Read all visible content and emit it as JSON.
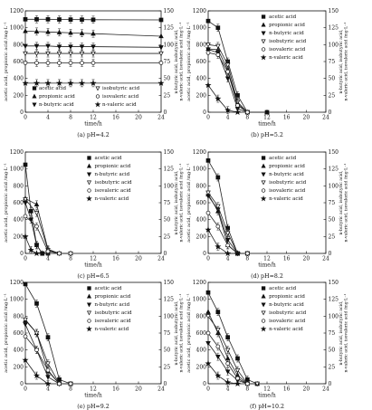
{
  "common": {
    "ylabel_left": "acetic acid, propionic acid /mg·L⁻¹",
    "ylabel_right": "n-butyric acid, isobutyric acid, n-valeric acid, isovaleric acid /mg·L⁻¹",
    "xlabel": "time/h"
  },
  "chart_data": [
    {
      "panel": "a",
      "caption": "(a)  pH=4.2",
      "type": "line",
      "xlim": [
        0,
        24
      ],
      "xticks": [
        0,
        4,
        8,
        12,
        16,
        20,
        24
      ],
      "ylim": [
        0,
        1200
      ],
      "yticks": [
        0,
        200,
        400,
        600,
        800,
        1000,
        1200
      ],
      "y2lim": [
        0,
        150
      ],
      "y2ticks": [
        0,
        25,
        50,
        75,
        100,
        125,
        150
      ],
      "legend": "bottom-center",
      "series": [
        {
          "name": "acetic acid",
          "marker": "square",
          "axis": "left",
          "x": [
            0,
            2,
            4,
            6,
            8,
            10,
            12,
            24
          ],
          "y": [
            1100,
            1100,
            1100,
            1098,
            1097,
            1096,
            1095,
            1093
          ]
        },
        {
          "name": "propionic acid",
          "marker": "triangle",
          "axis": "left",
          "x": [
            0,
            2,
            4,
            6,
            8,
            10,
            12,
            24
          ],
          "y": [
            960,
            955,
            950,
            945,
            940,
            935,
            930,
            900
          ]
        },
        {
          "name": "n-butyric acid",
          "marker": "triangle-down",
          "axis": "right",
          "x": [
            0,
            2,
            4,
            6,
            8,
            10,
            12,
            24
          ],
          "y": [
            98,
            98,
            98,
            97,
            97,
            97,
            97,
            96
          ]
        },
        {
          "name": "isobutyric acid",
          "marker": "triangle-down-open",
          "axis": "right",
          "x": [
            0,
            2,
            4,
            6,
            8,
            10,
            12,
            24
          ],
          "y": [
            87,
            87,
            87,
            87,
            87,
            87,
            87,
            87
          ]
        },
        {
          "name": "isovaleric acid",
          "marker": "circle-open",
          "axis": "right",
          "x": [
            0,
            2,
            4,
            6,
            8,
            10,
            12,
            24
          ],
          "y": [
            73,
            73,
            73,
            73,
            73,
            73,
            73,
            73
          ]
        },
        {
          "name": "n-valeric acid",
          "marker": "star",
          "axis": "right",
          "x": [
            0,
            2,
            4,
            6,
            8,
            10,
            12,
            24
          ],
          "y": [
            43,
            43,
            43,
            43,
            43,
            43,
            43,
            43
          ]
        }
      ]
    },
    {
      "panel": "b",
      "caption": "(b)  pH=5.2",
      "type": "line",
      "xlim": [
        0,
        24
      ],
      "xticks": [
        0,
        4,
        8,
        12,
        16,
        20,
        24
      ],
      "ylim": [
        0,
        1200
      ],
      "yticks": [
        0,
        200,
        400,
        600,
        800,
        1000,
        1200
      ],
      "y2lim": [
        0,
        150
      ],
      "y2ticks": [
        0,
        25,
        50,
        75,
        100,
        125,
        150
      ],
      "legend": "top-right",
      "series": [
        {
          "name": "acetic acid",
          "marker": "square",
          "axis": "left",
          "x": [
            0,
            2,
            4,
            6,
            8,
            12
          ],
          "y": [
            1080,
            1000,
            600,
            200,
            0,
            0
          ]
        },
        {
          "name": "propionic acid",
          "marker": "triangle",
          "axis": "left",
          "x": [
            0,
            2,
            4,
            6,
            8,
            12
          ],
          "y": [
            750,
            740,
            500,
            100,
            0,
            0
          ]
        },
        {
          "name": "n-butyric acid",
          "marker": "triangle-down",
          "axis": "right",
          "x": [
            0,
            2,
            4,
            6,
            8
          ],
          "y": [
            93,
            88,
            50,
            5,
            0
          ]
        },
        {
          "name": "isobutyric acid",
          "marker": "triangle-down-open",
          "axis": "right",
          "x": [
            0,
            2,
            4,
            6,
            8
          ],
          "y": [
            100,
            98,
            70,
            15,
            0
          ]
        },
        {
          "name": "isovaleric acid",
          "marker": "circle-open",
          "axis": "right",
          "x": [
            0,
            2,
            4,
            6,
            8
          ],
          "y": [
            88,
            85,
            60,
            10,
            0
          ]
        },
        {
          "name": "n-valeric acid",
          "marker": "star",
          "axis": "right",
          "x": [
            0,
            2,
            4,
            6
          ],
          "y": [
            40,
            20,
            3,
            0
          ]
        }
      ]
    },
    {
      "panel": "c",
      "caption": "(c)  pH=6.5",
      "type": "line",
      "xlim": [
        0,
        24
      ],
      "xticks": [
        0,
        4,
        8,
        12,
        16,
        20,
        24
      ],
      "ylim": [
        0,
        1200
      ],
      "yticks": [
        0,
        200,
        400,
        600,
        800,
        1000,
        1200
      ],
      "y2lim": [
        0,
        150
      ],
      "y2ticks": [
        0,
        25,
        50,
        75,
        100,
        125,
        150
      ],
      "legend": "top-right",
      "series": [
        {
          "name": "acetic acid",
          "marker": "square",
          "axis": "left",
          "x": [
            0,
            1,
            2,
            3,
            4
          ],
          "y": [
            1050,
            500,
            100,
            0,
            0
          ]
        },
        {
          "name": "propionic acid",
          "marker": "triangle",
          "axis": "left",
          "x": [
            0,
            2,
            4,
            6,
            8
          ],
          "y": [
            650,
            580,
            50,
            0,
            0
          ]
        },
        {
          "name": "n-butyric acid",
          "marker": "triangle-down",
          "axis": "right",
          "x": [
            0,
            1,
            2,
            3,
            4
          ],
          "y": [
            75,
            50,
            12,
            0,
            0
          ]
        },
        {
          "name": "isobutyric acid",
          "marker": "triangle-down-open",
          "axis": "right",
          "x": [
            0,
            2,
            4,
            6,
            8
          ],
          "y": [
            80,
            60,
            5,
            0,
            0
          ]
        },
        {
          "name": "isovaleric acid",
          "marker": "circle-open",
          "axis": "right",
          "x": [
            0,
            2,
            4,
            6,
            8
          ],
          "y": [
            55,
            40,
            3,
            0,
            0
          ]
        },
        {
          "name": "n-valeric acid",
          "marker": "star",
          "axis": "right",
          "x": [
            0,
            1,
            2,
            3
          ],
          "y": [
            25,
            5,
            0,
            0
          ]
        }
      ]
    },
    {
      "panel": "d",
      "caption": "(d)  pH=8.2",
      "type": "line",
      "xlim": [
        0,
        24
      ],
      "xticks": [
        0,
        4,
        8,
        12,
        16,
        20,
        24
      ],
      "ylim": [
        0,
        1200
      ],
      "yticks": [
        0,
        200,
        400,
        600,
        800,
        1000,
        1200
      ],
      "y2lim": [
        0,
        150
      ],
      "y2ticks": [
        0,
        25,
        50,
        75,
        100,
        125,
        150
      ],
      "legend": "top-right",
      "series": [
        {
          "name": "acetic acid",
          "marker": "square",
          "axis": "left",
          "x": [
            0,
            2,
            4,
            6,
            8
          ],
          "y": [
            1100,
            900,
            300,
            0,
            0
          ]
        },
        {
          "name": "propionic acid",
          "marker": "triangle",
          "axis": "left",
          "x": [
            0,
            2,
            4,
            6,
            8
          ],
          "y": [
            700,
            500,
            100,
            0,
            0
          ]
        },
        {
          "name": "n-butyric acid",
          "marker": "triangle-down",
          "axis": "right",
          "x": [
            0,
            2,
            4,
            6,
            8
          ],
          "y": [
            85,
            65,
            20,
            0,
            0
          ]
        },
        {
          "name": "isobutyric acid",
          "marker": "triangle-down-open",
          "axis": "right",
          "x": [
            0,
            2,
            4,
            6,
            8
          ],
          "y": [
            90,
            70,
            30,
            0,
            0
          ]
        },
        {
          "name": "isovaleric acid",
          "marker": "circle-open",
          "axis": "right",
          "x": [
            0,
            2,
            4,
            6,
            8
          ],
          "y": [
            60,
            40,
            12,
            0,
            0
          ]
        },
        {
          "name": "n-valeric acid",
          "marker": "star",
          "axis": "right",
          "x": [
            0,
            2,
            4,
            6
          ],
          "y": [
            35,
            10,
            0,
            0
          ]
        }
      ]
    },
    {
      "panel": "e",
      "caption": "(e)  pH=9.2",
      "type": "line",
      "xlim": [
        0,
        24
      ],
      "xticks": [
        0,
        4,
        8,
        12,
        16,
        20,
        24
      ],
      "ylim": [
        0,
        1200
      ],
      "yticks": [
        0,
        200,
        400,
        600,
        800,
        1000,
        1200
      ],
      "y2lim": [
        0,
        150
      ],
      "y2ticks": [
        0,
        25,
        50,
        75,
        100,
        125,
        150
      ],
      "legend": "top-right",
      "series": [
        {
          "name": "acetic acid",
          "marker": "square",
          "axis": "left",
          "x": [
            0,
            2,
            4,
            6,
            8
          ],
          "y": [
            1180,
            950,
            550,
            50,
            0
          ]
        },
        {
          "name": "propionic acid",
          "marker": "triangle",
          "axis": "left",
          "x": [
            0,
            2,
            4,
            6,
            8
          ],
          "y": [
            750,
            600,
            150,
            0,
            0
          ]
        },
        {
          "name": "n-butyric acid",
          "marker": "triangle-down",
          "axis": "right",
          "x": [
            0,
            2,
            4,
            6
          ],
          "y": [
            88,
            50,
            10,
            0
          ]
        },
        {
          "name": "isobutyric acid",
          "marker": "triangle-down-open",
          "axis": "right",
          "x": [
            0,
            2,
            4,
            6,
            8
          ],
          "y": [
            95,
            75,
            30,
            0,
            0
          ]
        },
        {
          "name": "isovaleric acid",
          "marker": "circle-open",
          "axis": "right",
          "x": [
            0,
            2,
            4,
            6,
            8
          ],
          "y": [
            70,
            50,
            20,
            0,
            0
          ]
        },
        {
          "name": "n-valeric acid",
          "marker": "star",
          "axis": "right",
          "x": [
            0,
            2,
            4
          ],
          "y": [
            35,
            12,
            0
          ]
        }
      ]
    },
    {
      "panel": "f",
      "caption": "(f)  pH=10.2",
      "type": "line",
      "xlim": [
        0,
        24
      ],
      "xticks": [
        0,
        4,
        8,
        12,
        16,
        20,
        24
      ],
      "ylim": [
        0,
        1200
      ],
      "yticks": [
        0,
        200,
        400,
        600,
        800,
        1000,
        1200
      ],
      "y2lim": [
        0,
        150
      ],
      "y2ticks": [
        0,
        25,
        50,
        75,
        100,
        125,
        150
      ],
      "legend": "top-right",
      "series": [
        {
          "name": "acetic acid",
          "marker": "square",
          "axis": "left",
          "x": [
            0,
            2,
            4,
            6,
            8,
            10
          ],
          "y": [
            1080,
            850,
            550,
            300,
            50,
            0
          ]
        },
        {
          "name": "propionic acid",
          "marker": "triangle",
          "axis": "left",
          "x": [
            0,
            2,
            4,
            6,
            8,
            10
          ],
          "y": [
            850,
            600,
            300,
            100,
            0,
            0
          ]
        },
        {
          "name": "n-butyric acid",
          "marker": "triangle-down",
          "axis": "right",
          "x": [
            0,
            2,
            4,
            6,
            8
          ],
          "y": [
            60,
            40,
            18,
            5,
            0
          ]
        },
        {
          "name": "isobutyric acid",
          "marker": "triangle-down-open",
          "axis": "right",
          "x": [
            0,
            2,
            4,
            6,
            8,
            10
          ],
          "y": [
            100,
            80,
            50,
            20,
            0,
            0
          ]
        },
        {
          "name": "isovaleric acid",
          "marker": "circle-open",
          "axis": "right",
          "x": [
            0,
            2,
            4,
            6,
            8
          ],
          "y": [
            75,
            55,
            30,
            8,
            0
          ]
        },
        {
          "name": "n-valeric acid",
          "marker": "star",
          "axis": "right",
          "x": [
            0,
            2,
            4,
            6
          ],
          "y": [
            30,
            12,
            2,
            0
          ]
        }
      ]
    }
  ]
}
